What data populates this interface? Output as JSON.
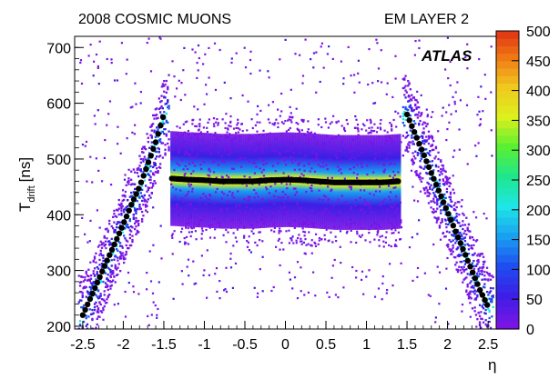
{
  "chart_data": {
    "type": "heatmap",
    "title_left": "2008 COSMIC MUONS",
    "title_right": "EM LAYER 2",
    "watermark": "ATLAS",
    "xlabel": "η",
    "ylabel_main": "T",
    "ylabel_sub": "drift",
    "ylabel_unit": "[ns]",
    "xlim": [
      -2.6,
      2.6
    ],
    "ylim": [
      195,
      720
    ],
    "x_ticks": [
      "-2.5",
      "-2",
      "-1.5",
      "-1",
      "-0.5",
      "0",
      "0.5",
      "1",
      "1.5",
      "2",
      "2.5"
    ],
    "x_tick_values": [
      -2.5,
      -2,
      -1.5,
      -1,
      -0.5,
      0,
      0.5,
      1,
      1.5,
      2,
      2.5
    ],
    "y_ticks": [
      "200",
      "300",
      "400",
      "500",
      "600",
      "700"
    ],
    "y_tick_values": [
      200,
      300,
      400,
      500,
      600,
      700
    ],
    "z_range": [
      0,
      500
    ],
    "z_ticks": [
      "0",
      "50",
      "100",
      "150",
      "200",
      "250",
      "300",
      "350",
      "400",
      "450",
      "500"
    ],
    "z_tick_values": [
      0,
      50,
      100,
      150,
      200,
      250,
      300,
      350,
      400,
      450,
      500
    ],
    "colormap": [
      "#ffffff",
      "#7a14e6",
      "#3c1ee6",
      "#1e4ef0",
      "#1aa0f0",
      "#1ee6e6",
      "#1ee68c",
      "#5af032",
      "#dcf01e",
      "#f0c81e",
      "#f07814",
      "#dc2814"
    ],
    "barrel_profile": {
      "x": [
        -1.4,
        -1.2,
        -1.0,
        -0.8,
        -0.6,
        -0.4,
        -0.2,
        0.0,
        0.2,
        0.4,
        0.6,
        0.8,
        1.0,
        1.2,
        1.4
      ],
      "y": [
        465,
        463,
        462,
        460,
        460,
        460,
        462,
        463,
        462,
        460,
        458,
        458,
        458,
        458,
        460
      ]
    },
    "endcap_left_profile": {
      "x": [
        -2.5,
        -2.4,
        -2.3,
        -2.2,
        -2.1,
        -2.0,
        -1.9,
        -1.8,
        -1.7,
        -1.6,
        -1.5
      ],
      "y": [
        220,
        252,
        285,
        318,
        350,
        383,
        418,
        450,
        490,
        530,
        580
      ]
    },
    "endcap_right_profile": {
      "x": [
        1.5,
        1.6,
        1.7,
        1.8,
        1.9,
        2.0,
        2.1,
        2.2,
        2.3,
        2.4,
        2.5
      ],
      "y": [
        580,
        545,
        510,
        475,
        440,
        405,
        370,
        335,
        300,
        265,
        235
      ]
    }
  }
}
